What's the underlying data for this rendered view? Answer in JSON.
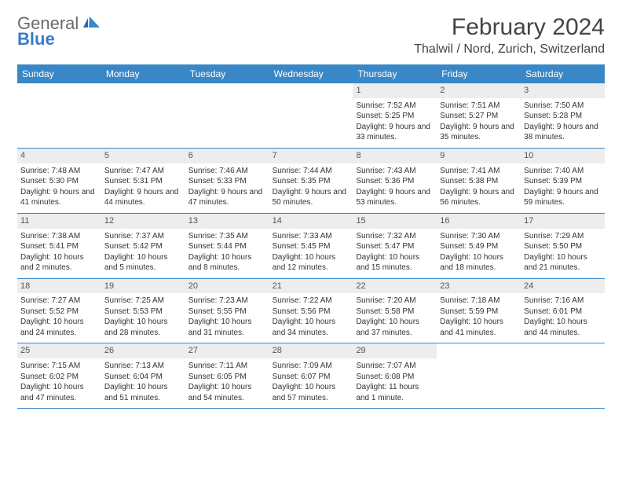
{
  "brand": {
    "name1": "General",
    "name2": "Blue"
  },
  "title": "February 2024",
  "location": "Thalwil / Nord, Zurich, Switzerland",
  "colors": {
    "header_bg": "#3a87c7",
    "header_text": "#ffffff",
    "daynum_bg": "#ededed",
    "daynum_text": "#555555",
    "week_border": "#3a87c7",
    "body_text": "#333333",
    "logo_gray": "#6a6a6a",
    "logo_blue": "#3a7cc4"
  },
  "dayLabels": [
    "Sunday",
    "Monday",
    "Tuesday",
    "Wednesday",
    "Thursday",
    "Friday",
    "Saturday"
  ],
  "weeks": [
    [
      {
        "empty": true
      },
      {
        "empty": true
      },
      {
        "empty": true
      },
      {
        "empty": true
      },
      {
        "n": "1",
        "sr": "7:52 AM",
        "ss": "5:25 PM",
        "dl": "9 hours and 33 minutes."
      },
      {
        "n": "2",
        "sr": "7:51 AM",
        "ss": "5:27 PM",
        "dl": "9 hours and 35 minutes."
      },
      {
        "n": "3",
        "sr": "7:50 AM",
        "ss": "5:28 PM",
        "dl": "9 hours and 38 minutes."
      }
    ],
    [
      {
        "n": "4",
        "sr": "7:48 AM",
        "ss": "5:30 PM",
        "dl": "9 hours and 41 minutes."
      },
      {
        "n": "5",
        "sr": "7:47 AM",
        "ss": "5:31 PM",
        "dl": "9 hours and 44 minutes."
      },
      {
        "n": "6",
        "sr": "7:46 AM",
        "ss": "5:33 PM",
        "dl": "9 hours and 47 minutes."
      },
      {
        "n": "7",
        "sr": "7:44 AM",
        "ss": "5:35 PM",
        "dl": "9 hours and 50 minutes."
      },
      {
        "n": "8",
        "sr": "7:43 AM",
        "ss": "5:36 PM",
        "dl": "9 hours and 53 minutes."
      },
      {
        "n": "9",
        "sr": "7:41 AM",
        "ss": "5:38 PM",
        "dl": "9 hours and 56 minutes."
      },
      {
        "n": "10",
        "sr": "7:40 AM",
        "ss": "5:39 PM",
        "dl": "9 hours and 59 minutes."
      }
    ],
    [
      {
        "n": "11",
        "sr": "7:38 AM",
        "ss": "5:41 PM",
        "dl": "10 hours and 2 minutes."
      },
      {
        "n": "12",
        "sr": "7:37 AM",
        "ss": "5:42 PM",
        "dl": "10 hours and 5 minutes."
      },
      {
        "n": "13",
        "sr": "7:35 AM",
        "ss": "5:44 PM",
        "dl": "10 hours and 8 minutes."
      },
      {
        "n": "14",
        "sr": "7:33 AM",
        "ss": "5:45 PM",
        "dl": "10 hours and 12 minutes."
      },
      {
        "n": "15",
        "sr": "7:32 AM",
        "ss": "5:47 PM",
        "dl": "10 hours and 15 minutes."
      },
      {
        "n": "16",
        "sr": "7:30 AM",
        "ss": "5:49 PM",
        "dl": "10 hours and 18 minutes."
      },
      {
        "n": "17",
        "sr": "7:29 AM",
        "ss": "5:50 PM",
        "dl": "10 hours and 21 minutes."
      }
    ],
    [
      {
        "n": "18",
        "sr": "7:27 AM",
        "ss": "5:52 PM",
        "dl": "10 hours and 24 minutes."
      },
      {
        "n": "19",
        "sr": "7:25 AM",
        "ss": "5:53 PM",
        "dl": "10 hours and 28 minutes."
      },
      {
        "n": "20",
        "sr": "7:23 AM",
        "ss": "5:55 PM",
        "dl": "10 hours and 31 minutes."
      },
      {
        "n": "21",
        "sr": "7:22 AM",
        "ss": "5:56 PM",
        "dl": "10 hours and 34 minutes."
      },
      {
        "n": "22",
        "sr": "7:20 AM",
        "ss": "5:58 PM",
        "dl": "10 hours and 37 minutes."
      },
      {
        "n": "23",
        "sr": "7:18 AM",
        "ss": "5:59 PM",
        "dl": "10 hours and 41 minutes."
      },
      {
        "n": "24",
        "sr": "7:16 AM",
        "ss": "6:01 PM",
        "dl": "10 hours and 44 minutes."
      }
    ],
    [
      {
        "n": "25",
        "sr": "7:15 AM",
        "ss": "6:02 PM",
        "dl": "10 hours and 47 minutes."
      },
      {
        "n": "26",
        "sr": "7:13 AM",
        "ss": "6:04 PM",
        "dl": "10 hours and 51 minutes."
      },
      {
        "n": "27",
        "sr": "7:11 AM",
        "ss": "6:05 PM",
        "dl": "10 hours and 54 minutes."
      },
      {
        "n": "28",
        "sr": "7:09 AM",
        "ss": "6:07 PM",
        "dl": "10 hours and 57 minutes."
      },
      {
        "n": "29",
        "sr": "7:07 AM",
        "ss": "6:08 PM",
        "dl": "11 hours and 1 minute."
      },
      {
        "empty": true
      },
      {
        "empty": true
      }
    ]
  ],
  "labels": {
    "sunrise": "Sunrise: ",
    "sunset": "Sunset: ",
    "daylight": "Daylight: "
  }
}
